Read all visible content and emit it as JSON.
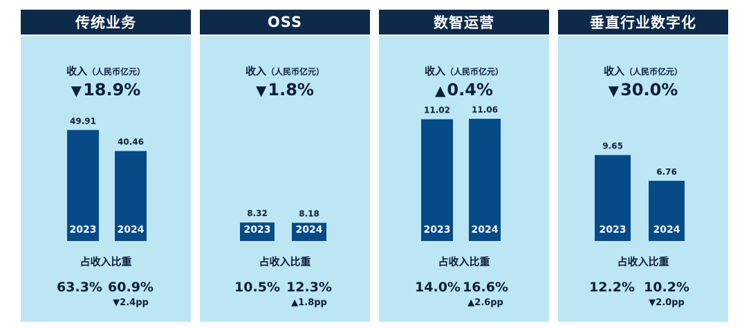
{
  "revenue_label": "收入",
  "revenue_unit": "（人民币亿元）",
  "share_title": "占收入比重",
  "chart_data": [
    {
      "type": "bar",
      "title": "传统业务",
      "categories": [
        "2023",
        "2024"
      ],
      "values": [
        49.91,
        40.46
      ],
      "value_labels": [
        "49.91",
        "40.46"
      ],
      "change": {
        "direction": "down",
        "arrow": "▼",
        "text": "18.9%"
      },
      "share": {
        "2023": "63.3%",
        "2024": "60.9%",
        "delta": "▼2.4pp"
      }
    },
    {
      "type": "bar",
      "title": "OSS",
      "categories": [
        "2023",
        "2024"
      ],
      "values": [
        8.32,
        8.18
      ],
      "value_labels": [
        "8.32",
        "8.18"
      ],
      "change": {
        "direction": "down",
        "arrow": "▼",
        "text": "1.8%"
      },
      "share": {
        "2023": "10.5%",
        "2024": "12.3%",
        "delta": "▲1.8pp"
      }
    },
    {
      "type": "bar",
      "title": "数智运营",
      "categories": [
        "2023",
        "2024"
      ],
      "values": [
        11.02,
        11.06
      ],
      "value_labels": [
        "11.02",
        "11.06"
      ],
      "change": {
        "direction": "up",
        "arrow": "▲",
        "text": "0.4%"
      },
      "share": {
        "2023": "14.0%",
        "2024": "16.6%",
        "delta": "▲2.6pp"
      }
    },
    {
      "type": "bar",
      "title": "垂直行业数字化",
      "categories": [
        "2023",
        "2024"
      ],
      "values": [
        9.65,
        6.76
      ],
      "value_labels": [
        "9.65",
        "6.76"
      ],
      "change": {
        "direction": "down",
        "arrow": "▼",
        "text": "30.0%"
      },
      "share": {
        "2023": "12.2%",
        "2024": "10.2%",
        "delta": "▼2.0pp"
      }
    }
  ],
  "colors": {
    "header_bg": "#0d2a4b",
    "panel_bg": "#bde6f5",
    "bar": "#064a87",
    "text": "#0b1f3a"
  }
}
